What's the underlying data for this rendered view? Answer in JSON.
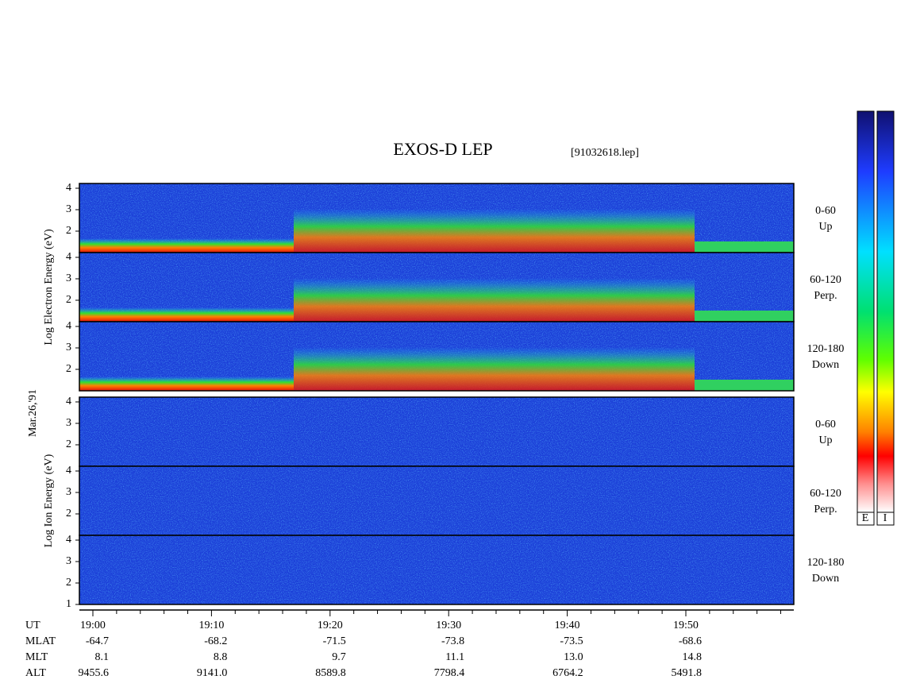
{
  "title": "EXOS-D LEP",
  "file": "[91032618.lep]",
  "date": "Mar.26,'91",
  "groups": [
    {
      "axis_label": "Log Electron Energy (eV)",
      "panels": [
        {
          "label": [
            "0-60",
            "Up"
          ],
          "yticks": [
            2,
            3,
            4
          ]
        },
        {
          "label": [
            "60-120",
            "Perp."
          ],
          "yticks": [
            2,
            3,
            4
          ]
        },
        {
          "label": [
            "120-180",
            "Down"
          ],
          "yticks": [
            2,
            3,
            4
          ]
        }
      ]
    },
    {
      "axis_label": "Log Ion Energy (eV)",
      "panels": [
        {
          "label": [
            "0-60",
            "Up"
          ],
          "yticks": [
            2,
            3,
            4
          ]
        },
        {
          "label": [
            "60-120",
            "Perp."
          ],
          "yticks": [
            2,
            3,
            4
          ]
        },
        {
          "label": [
            "120-180",
            "Down"
          ],
          "yticks": [
            1,
            2,
            3,
            4
          ]
        }
      ]
    }
  ],
  "x_labels": [
    "19:00",
    "19:10",
    "19:20",
    "19:30",
    "19:40",
    "19:50"
  ],
  "orbit_first": "UT",
  "orbit": [
    {
      "name": "MLAT",
      "values": [
        "-64.7",
        "-68.2",
        "-71.5",
        "-73.8",
        "-73.5",
        "-68.6"
      ]
    },
    {
      "name": "MLT",
      "values": [
        "8.1",
        "8.8",
        "9.7",
        "11.1",
        "13.0",
        "14.8"
      ]
    },
    {
      "name": "ALT",
      "values": [
        "9455.6",
        "9141.0",
        "8589.8",
        "7798.4",
        "6764.2",
        "5491.8"
      ]
    }
  ],
  "colorbar_labels": [
    "E",
    "I"
  ]
}
